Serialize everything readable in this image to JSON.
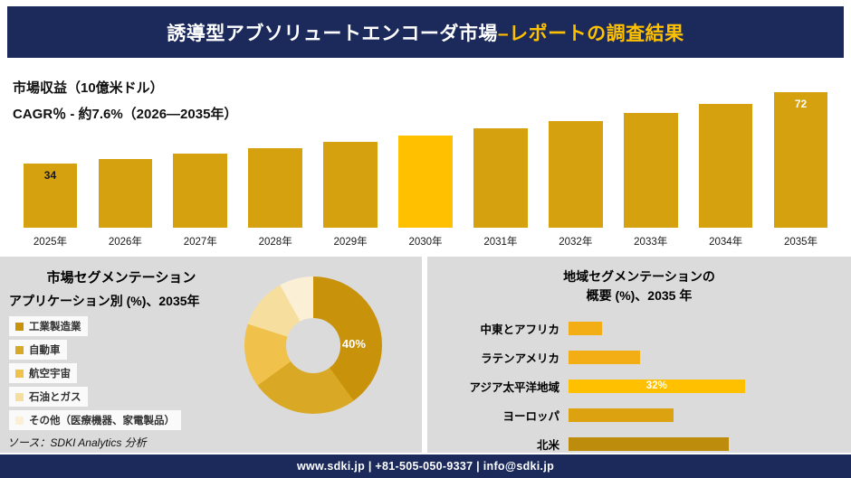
{
  "brand": {
    "navy": "#1B2A5B",
    "gold": "#FFC000"
  },
  "header": {
    "title_main": "誘導型アブソリュートエンコーダ市場",
    "title_accent": "–レポートの調査結果"
  },
  "source": "ソース：SDKI Analytics 分析",
  "footer": {
    "text": "www.sdki.jp | +81-505-050-9337 | info@sdki.jp"
  },
  "chart_data": [
    {
      "type": "bar",
      "title": "市場収益（10億米ドル）",
      "subtitle": "CAGR％ - 約7.6%（2026―2035年）",
      "categories": [
        "2025年",
        "2026年",
        "2027年",
        "2028年",
        "2029年",
        "2030年",
        "2031年",
        "2032年",
        "2033年",
        "2034年",
        "2035年"
      ],
      "values": [
        34,
        36.6,
        39.4,
        42.4,
        45.6,
        49.1,
        52.8,
        56.8,
        61.1,
        65.8,
        72
      ],
      "ylim": [
        0,
        72
      ],
      "bar_color": "#D5A10E",
      "highlight_category": "2030年",
      "highlight_color": "#FFC000",
      "value_labels": [
        {
          "index": 0,
          "text": "34",
          "color": "#1a1a1a"
        },
        {
          "index": 10,
          "text": "72",
          "color": "#ffffff"
        }
      ]
    },
    {
      "type": "pie",
      "title": "市場セグメンテーション",
      "subtitle": "アプリケーション別 (%)、2035年",
      "labels": [
        "工業製造業",
        "自動車",
        "航空宇宙",
        "石油とガス",
        "その他（医療機器、家電製品）"
      ],
      "values": [
        40,
        25,
        15,
        12,
        8
      ],
      "colors": [
        "#C8920B",
        "#D9A824",
        "#F0C14B",
        "#F6DE9E",
        "#FBF0D6"
      ],
      "data_label": "40%",
      "data_label_slice": "工業製造業",
      "legend_position": "left"
    },
    {
      "type": "bar",
      "orientation": "horizontal",
      "title_line1": "地域セグメンテーションの",
      "title_line2": "概要 (%)、2035 年",
      "categories": [
        "中東とアフリカ",
        "ラテンアメリカ",
        "アジア太平洋地域",
        "ヨーロッパ",
        "北米"
      ],
      "values": [
        6,
        13,
        32,
        19,
        29
      ],
      "colors": [
        "#F2AE14",
        "#F2AE14",
        "#FFC000",
        "#DDA20F",
        "#BE8C0C"
      ],
      "data_label": "32%",
      "data_label_category": "アジア太平洋地域"
    }
  ]
}
